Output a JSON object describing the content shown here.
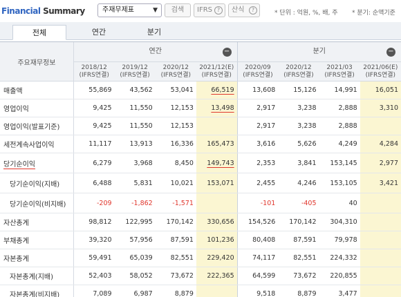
{
  "header": {
    "brand_part1": "Financial",
    "brand_part2": " Summary",
    "select_value": "주재무제표",
    "search_label": "검색",
    "ifrs_label": "IFRS",
    "calc_label": "산식",
    "help_glyph": "?",
    "unit_note": "* 단위 : 억원, %, 배, 주",
    "quarter_note": "* 분기: 순액기준"
  },
  "tabs": [
    "전체",
    "연간",
    "분기"
  ],
  "table": {
    "label_header": "주요재무정보",
    "annual_group": "연간",
    "quarter_group": "분기",
    "collapse_glyph": "−",
    "columns": [
      {
        "period": "2018/12",
        "basis": "(IFRS연결)"
      },
      {
        "period": "2019/12",
        "basis": "(IFRS연결)"
      },
      {
        "period": "2020/12",
        "basis": "(IFRS연결)"
      },
      {
        "period": "2021/12(E)",
        "basis": "(IFRS연결)"
      },
      {
        "period": "2020/09",
        "basis": "(IFRS연결)"
      },
      {
        "period": "2020/12",
        "basis": "(IFRS연결)"
      },
      {
        "period": "2021/03",
        "basis": "(IFRS연결)"
      },
      {
        "period": "2021/06(E)",
        "basis": "(IFRS연결)"
      }
    ],
    "rows": [
      {
        "label": "매출액",
        "values": [
          "55,869",
          "43,562",
          "53,041",
          "66,519",
          "13,608",
          "15,126",
          "14,991",
          "16,051"
        ]
      },
      {
        "label": "영업이익",
        "values": [
          "9,425",
          "11,550",
          "12,153",
          "13,498",
          "2,917",
          "3,238",
          "2,888",
          "3,310"
        ]
      },
      {
        "label": "영업이익(발표기준)",
        "values": [
          "9,425",
          "11,550",
          "12,153",
          "",
          "2,917",
          "3,238",
          "2,888",
          ""
        ]
      },
      {
        "label": "세전계속사업이익",
        "values": [
          "11,117",
          "13,913",
          "16,336",
          "165,473",
          "3,616",
          "5,626",
          "4,249",
          "4,284"
        ]
      },
      {
        "label": "당기순이익",
        "values": [
          "6,279",
          "3,968",
          "8,450",
          "149,743",
          "2,353",
          "3,841",
          "153,145",
          "2,977"
        ]
      },
      {
        "label": "당기순이익(지배)",
        "values": [
          "6,488",
          "5,831",
          "10,021",
          "153,071",
          "2,455",
          "4,246",
          "153,105",
          "3,421"
        ]
      },
      {
        "label": "당기순이익(비지배)",
        "values": [
          "-209",
          "-1,862",
          "-1,571",
          "",
          "-101",
          "-405",
          "40",
          ""
        ]
      },
      {
        "label": "자산총계",
        "values": [
          "98,812",
          "122,995",
          "170,142",
          "330,656",
          "154,526",
          "170,142",
          "304,310",
          ""
        ]
      },
      {
        "label": "부채총계",
        "values": [
          "39,320",
          "57,956",
          "87,591",
          "101,236",
          "80,408",
          "87,591",
          "79,978",
          ""
        ]
      },
      {
        "label": "자본총계",
        "values": [
          "59,491",
          "65,039",
          "82,551",
          "229,420",
          "74,117",
          "82,551",
          "224,332",
          ""
        ]
      },
      {
        "label": "자본총계(지배)",
        "values": [
          "52,403",
          "58,052",
          "73,672",
          "222,365",
          "64,599",
          "73,672",
          "220,855",
          ""
        ]
      },
      {
        "label": "자본총계(비지배)",
        "values": [
          "7,089",
          "6,987",
          "8,879",
          "",
          "9,518",
          "8,879",
          "3,477",
          ""
        ]
      }
    ]
  },
  "colors": {
    "brand_blue": "#2f64c0",
    "estimate_bg": "#fbf6d2",
    "negative": "#e0362c",
    "underline_accent": "#e0362c"
  }
}
